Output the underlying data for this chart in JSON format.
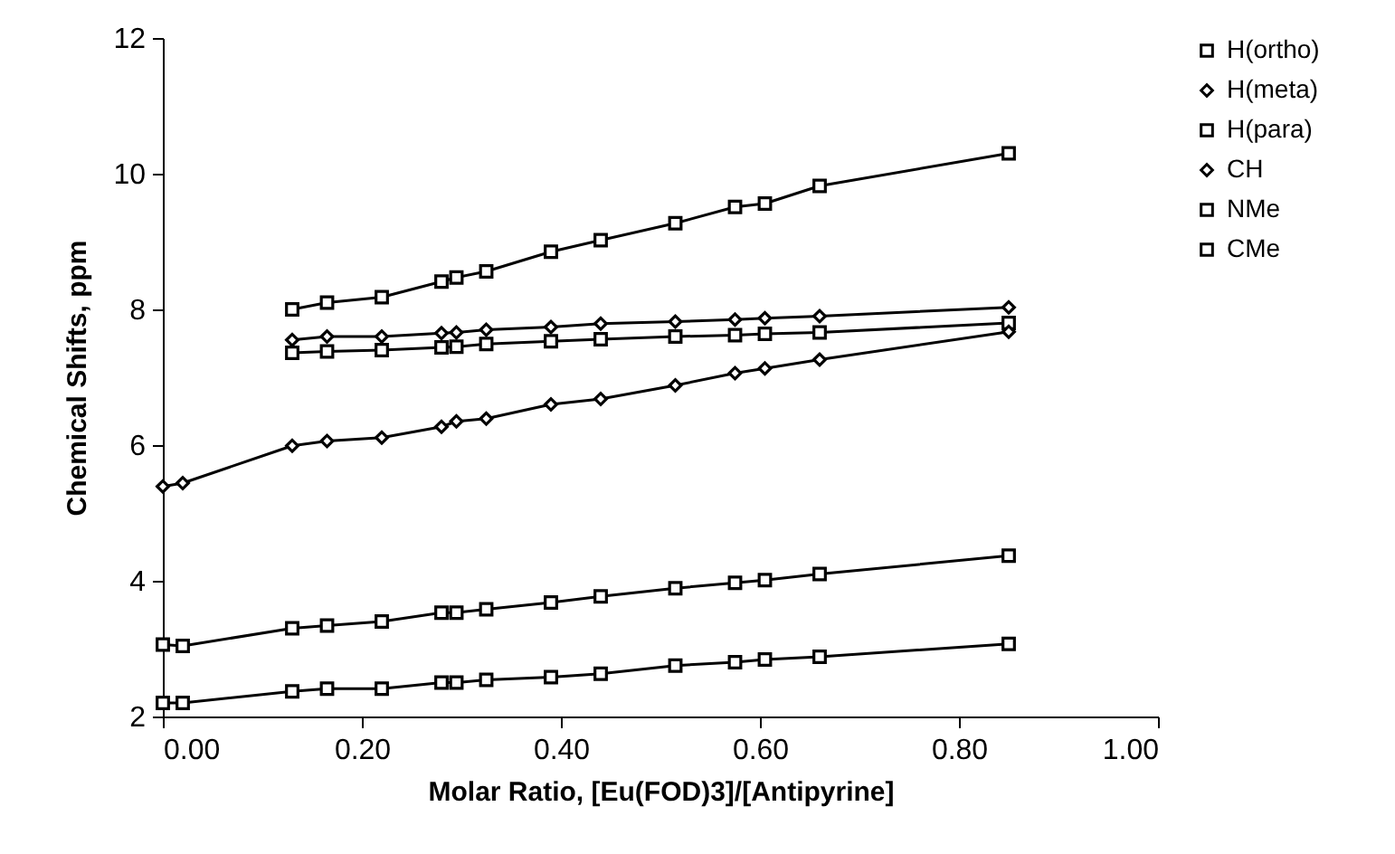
{
  "chart_data": {
    "type": "line",
    "xlabel": "Molar Ratio, [Eu(FOD)3]/[Antipyrine]",
    "ylabel": "Chemical Shifts, ppm",
    "xlim": [
      0,
      1
    ],
    "xticks": [
      {
        "value": 0,
        "label": "0.00"
      },
      {
        "value": 0.2,
        "label": "0.20"
      },
      {
        "value": 0.4,
        "label": "0.40"
      },
      {
        "value": 0.6,
        "label": "0.60"
      },
      {
        "value": 0.8,
        "label": "0.80"
      },
      {
        "value": 1,
        "label": "1.00"
      }
    ],
    "ylim": [
      2,
      12
    ],
    "yticks": [
      2,
      4,
      6,
      8,
      10,
      12
    ],
    "grid": false,
    "legend": "right",
    "line_style": "solid",
    "series": [
      {
        "name": "H(ortho)",
        "color": "#000000",
        "marker": "square",
        "x": [
          0.13,
          0.165,
          0.22,
          0.28,
          0.295,
          0.325,
          0.39,
          0.44,
          0.515,
          0.575,
          0.605,
          0.66,
          0.85
        ],
        "values": [
          8.0,
          8.1,
          8.18,
          8.41,
          8.47,
          8.56,
          8.85,
          9.02,
          9.27,
          9.51,
          9.56,
          9.82,
          10.3
        ]
      },
      {
        "name": "H(meta)",
        "color": "#000000",
        "marker": "diamond",
        "x": [
          0.13,
          0.165,
          0.22,
          0.28,
          0.295,
          0.325,
          0.39,
          0.44,
          0.515,
          0.575,
          0.605,
          0.66,
          0.85
        ],
        "values": [
          7.55,
          7.6,
          7.6,
          7.65,
          7.66,
          7.7,
          7.74,
          7.79,
          7.82,
          7.85,
          7.87,
          7.9,
          8.03
        ]
      },
      {
        "name": "H(para)",
        "color": "#000000",
        "marker": "square",
        "x": [
          0.13,
          0.165,
          0.22,
          0.28,
          0.295,
          0.325,
          0.39,
          0.44,
          0.515,
          0.575,
          0.605,
          0.66,
          0.85
        ],
        "values": [
          7.36,
          7.38,
          7.4,
          7.44,
          7.45,
          7.49,
          7.53,
          7.56,
          7.6,
          7.62,
          7.64,
          7.66,
          7.8
        ]
      },
      {
        "name": "CH",
        "color": "#000000",
        "marker": "diamond",
        "x": [
          0,
          0.02,
          0.13,
          0.165,
          0.22,
          0.28,
          0.295,
          0.325,
          0.39,
          0.44,
          0.515,
          0.575,
          0.605,
          0.66,
          0.85
        ],
        "values": [
          5.39,
          5.44,
          5.99,
          6.06,
          6.11,
          6.27,
          6.35,
          6.39,
          6.6,
          6.68,
          6.88,
          7.06,
          7.13,
          7.26,
          7.67
        ]
      },
      {
        "name": "NMe",
        "color": "#000000",
        "marker": "square",
        "x": [
          0,
          0.02,
          0.13,
          0.165,
          0.22,
          0.28,
          0.295,
          0.325,
          0.39,
          0.44,
          0.515,
          0.575,
          0.605,
          0.66,
          0.85
        ],
        "values": [
          3.06,
          3.04,
          3.3,
          3.34,
          3.4,
          3.53,
          3.53,
          3.58,
          3.68,
          3.77,
          3.89,
          3.97,
          4.01,
          4.1,
          4.37
        ]
      },
      {
        "name": "CMe",
        "color": "#000000",
        "marker": "square",
        "x": [
          0,
          0.02,
          0.13,
          0.165,
          0.22,
          0.28,
          0.295,
          0.325,
          0.39,
          0.44,
          0.515,
          0.575,
          0.605,
          0.66,
          0.85
        ],
        "values": [
          2.2,
          2.2,
          2.37,
          2.41,
          2.41,
          2.5,
          2.5,
          2.54,
          2.58,
          2.63,
          2.75,
          2.8,
          2.84,
          2.88,
          3.07
        ]
      }
    ]
  }
}
